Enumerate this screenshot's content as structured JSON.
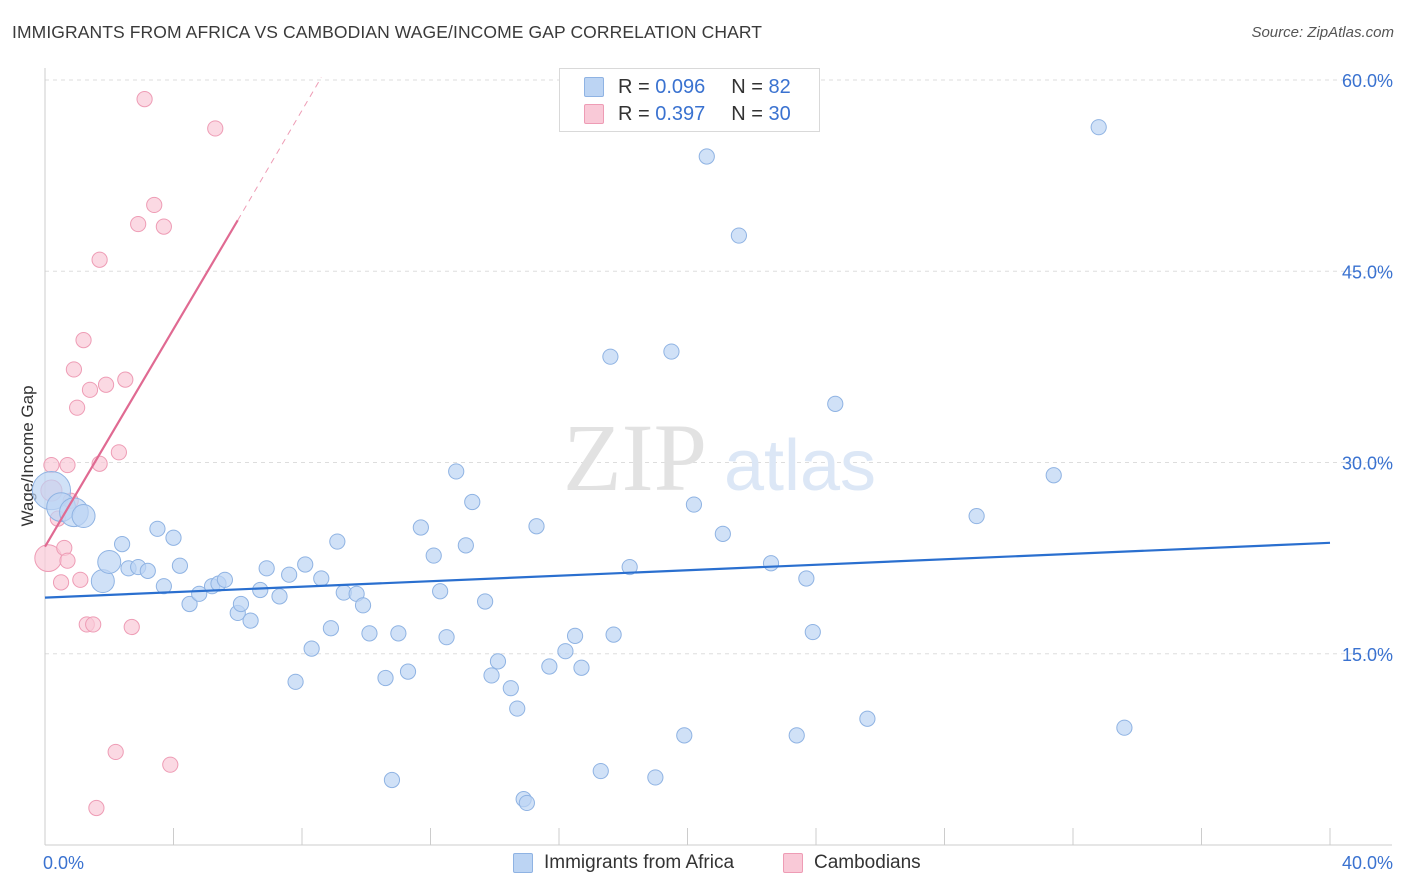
{
  "title": "IMMIGRANTS FROM AFRICA VS CAMBODIAN WAGE/INCOME GAP CORRELATION CHART",
  "source": "Source: ZipAtlas.com",
  "watermark": {
    "zip": "ZIP",
    "atlas": "atlas"
  },
  "colors": {
    "blue_fill": "#bcd4f3",
    "blue_stroke": "#8fb3e3",
    "blue_line": "#2a6fcf",
    "pink_fill": "#f9c9d7",
    "pink_stroke": "#ee9cb5",
    "pink_line": "#e06a92",
    "grid": "#dddddd",
    "tick_text": "#3a72d0"
  },
  "legend": {
    "series1": {
      "r_label": "R =",
      "r_value": "0.096",
      "n_label": "N =",
      "n_value": "82"
    },
    "series2": {
      "r_label": "R =",
      "r_value": "0.397",
      "n_label": "N =",
      "n_value": "30"
    }
  },
  "bottom_legend": [
    "Immigrants from Africa",
    "Cambodians"
  ],
  "chart_data": {
    "type": "scatter",
    "title": "IMMIGRANTS FROM AFRICA VS CAMBODIAN WAGE/INCOME GAP CORRELATION CHART",
    "xlabel": "",
    "ylabel": "Wage/Income Gap",
    "xlim": [
      0,
      40
    ],
    "ylim": [
      0,
      60
    ],
    "x_tick_labels": [
      "0.0%",
      "40.0%"
    ],
    "y_ticks": [
      15,
      30,
      45,
      60
    ],
    "y_tick_labels": [
      "15.0%",
      "30.0%",
      "45.0%",
      "60.0%"
    ],
    "grid": true,
    "series": [
      {
        "name": "Immigrants from Africa",
        "color": "blue",
        "trend": {
          "x": [
            0,
            40
          ],
          "y": [
            19.4,
            23.7
          ]
        },
        "points": [
          [
            0.2,
            27.8,
            1.8
          ],
          [
            0.5,
            26.5,
            1.3
          ],
          [
            0.9,
            26.1,
            1.3
          ],
          [
            1.2,
            25.8,
            1.0
          ],
          [
            1.8,
            20.7,
            1.0
          ],
          [
            2.0,
            22.2,
            1.0
          ],
          [
            2.4,
            23.6,
            0.8
          ],
          [
            2.6,
            21.7,
            0.8
          ],
          [
            2.9,
            21.8,
            0.8
          ],
          [
            3.2,
            21.5,
            0.8
          ],
          [
            3.5,
            24.8,
            0.8
          ],
          [
            3.7,
            20.3,
            0.8
          ],
          [
            4.0,
            24.1,
            0.8
          ],
          [
            4.2,
            21.9,
            0.8
          ],
          [
            4.5,
            18.9,
            0.8
          ],
          [
            4.8,
            19.7,
            0.8
          ],
          [
            5.2,
            20.3,
            0.8
          ],
          [
            5.4,
            20.5,
            0.8
          ],
          [
            5.6,
            20.8,
            0.8
          ],
          [
            6.0,
            18.2,
            0.8
          ],
          [
            6.1,
            18.9,
            0.8
          ],
          [
            6.4,
            17.6,
            0.8
          ],
          [
            6.7,
            20.0,
            0.8
          ],
          [
            6.9,
            21.7,
            0.8
          ],
          [
            7.3,
            19.5,
            0.8
          ],
          [
            7.6,
            21.2,
            0.8
          ],
          [
            7.8,
            12.8,
            0.8
          ],
          [
            8.1,
            22.0,
            0.8
          ],
          [
            8.3,
            15.4,
            0.8
          ],
          [
            8.6,
            20.9,
            0.8
          ],
          [
            8.9,
            17.0,
            0.8
          ],
          [
            9.1,
            23.8,
            0.8
          ],
          [
            9.3,
            19.8,
            0.8
          ],
          [
            9.7,
            19.7,
            0.8
          ],
          [
            9.9,
            18.8,
            0.8
          ],
          [
            10.1,
            16.6,
            0.8
          ],
          [
            10.6,
            13.1,
            0.8
          ],
          [
            10.8,
            5.1,
            0.8
          ],
          [
            11.0,
            16.6,
            0.8
          ],
          [
            11.3,
            13.6,
            0.8
          ],
          [
            11.7,
            24.9,
            0.8
          ],
          [
            12.1,
            22.7,
            0.8
          ],
          [
            12.3,
            19.9,
            0.8
          ],
          [
            12.5,
            16.3,
            0.8
          ],
          [
            12.8,
            29.3,
            0.8
          ],
          [
            13.1,
            23.5,
            0.8
          ],
          [
            13.3,
            26.9,
            0.8
          ],
          [
            13.7,
            19.1,
            0.8
          ],
          [
            13.9,
            13.3,
            0.8
          ],
          [
            14.1,
            14.4,
            0.8
          ],
          [
            14.5,
            12.3,
            0.8
          ],
          [
            14.7,
            10.7,
            0.8
          ],
          [
            14.9,
            3.6,
            0.8
          ],
          [
            15.0,
            3.3,
            0.8
          ],
          [
            15.3,
            25.0,
            0.8
          ],
          [
            15.7,
            14.0,
            0.8
          ],
          [
            16.2,
            15.2,
            0.8
          ],
          [
            16.5,
            16.4,
            0.8
          ],
          [
            16.7,
            13.9,
            0.8
          ],
          [
            17.3,
            5.8,
            0.8
          ],
          [
            17.6,
            38.3,
            0.8
          ],
          [
            17.7,
            16.5,
            0.8
          ],
          [
            18.2,
            21.8,
            0.8
          ],
          [
            19.0,
            5.3,
            0.8
          ],
          [
            19.5,
            38.7,
            0.8
          ],
          [
            19.9,
            8.6,
            0.8
          ],
          [
            20.2,
            26.7,
            0.8
          ],
          [
            20.6,
            54.0,
            0.8
          ],
          [
            21.1,
            24.4,
            0.8
          ],
          [
            21.6,
            47.8,
            0.8
          ],
          [
            22.6,
            22.1,
            0.8
          ],
          [
            23.4,
            8.6,
            0.8
          ],
          [
            23.7,
            20.9,
            0.8
          ],
          [
            23.9,
            16.7,
            0.8
          ],
          [
            24.6,
            34.6,
            0.8
          ],
          [
            25.6,
            9.9,
            0.8
          ],
          [
            29.0,
            25.8,
            0.8
          ],
          [
            31.4,
            29.0,
            0.8
          ],
          [
            32.8,
            56.3,
            0.8
          ],
          [
            33.6,
            9.2,
            0.8
          ]
        ]
      },
      {
        "name": "Cambodians",
        "color": "pink",
        "trend": {
          "x": [
            0,
            6.0
          ],
          "y": [
            23.4,
            49.0
          ]
        },
        "trend_extension": {
          "x": [
            6.0,
            8.6
          ],
          "y": [
            49.0,
            60.2
          ]
        },
        "points": [
          [
            0.1,
            22.5,
            1.2
          ],
          [
            0.2,
            27.8,
            0.9
          ],
          [
            0.2,
            29.8,
            0.8
          ],
          [
            0.4,
            25.6,
            0.8
          ],
          [
            0.5,
            20.6,
            0.8
          ],
          [
            0.6,
            23.3,
            0.8
          ],
          [
            0.7,
            29.8,
            0.8
          ],
          [
            0.7,
            22.3,
            0.8
          ],
          [
            0.8,
            27.0,
            0.8
          ],
          [
            0.9,
            37.3,
            0.8
          ],
          [
            1.0,
            34.3,
            0.8
          ],
          [
            1.1,
            20.8,
            0.8
          ],
          [
            1.2,
            39.6,
            0.8
          ],
          [
            1.3,
            17.3,
            0.8
          ],
          [
            1.4,
            35.7,
            0.8
          ],
          [
            1.6,
            2.9,
            0.8
          ],
          [
            1.7,
            45.9,
            0.8
          ],
          [
            1.7,
            29.9,
            0.8
          ],
          [
            1.9,
            36.1,
            0.8
          ],
          [
            2.2,
            7.3,
            0.8
          ],
          [
            2.3,
            30.8,
            0.8
          ],
          [
            2.5,
            36.5,
            0.8
          ],
          [
            2.7,
            17.1,
            0.8
          ],
          [
            2.9,
            48.7,
            0.8
          ],
          [
            3.1,
            58.5,
            0.8
          ],
          [
            3.4,
            50.2,
            0.8
          ],
          [
            3.7,
            48.5,
            0.8
          ],
          [
            3.9,
            6.3,
            0.8
          ],
          [
            5.3,
            56.2,
            0.8
          ],
          [
            1.5,
            17.3,
            0.8
          ]
        ]
      }
    ]
  }
}
